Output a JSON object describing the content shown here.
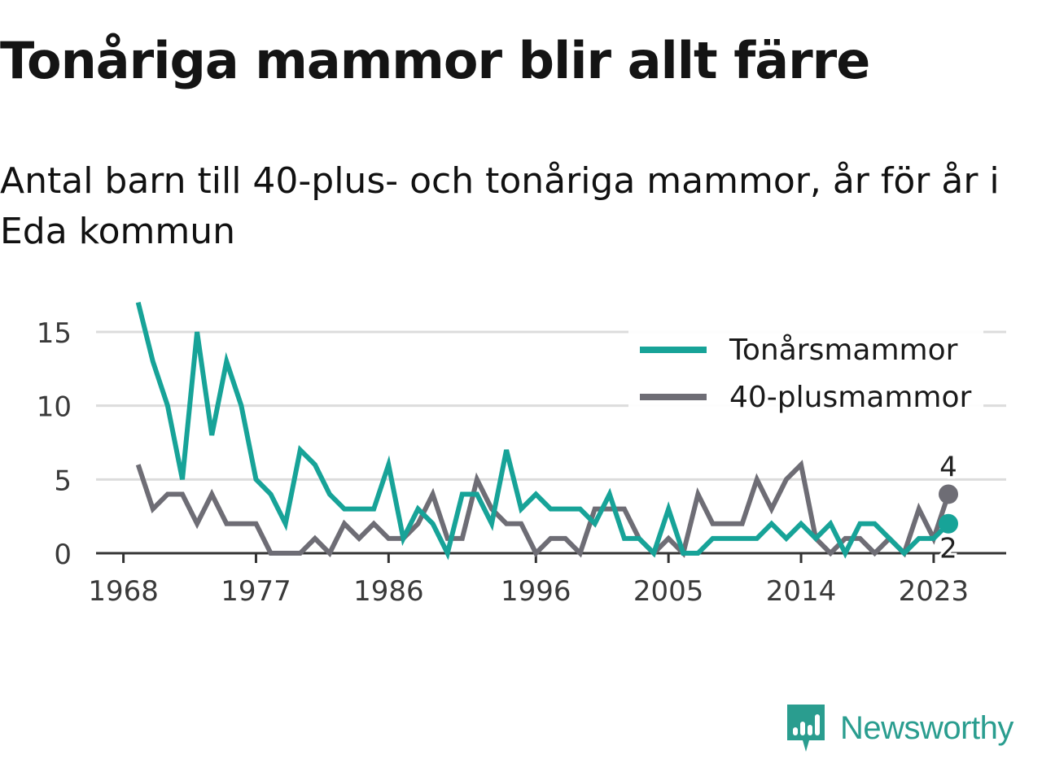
{
  "title": "Tonåriga mammor blir allt färre",
  "subtitle": "Antal barn till 40-plus- och tonåriga mammor, år för år i Eda kommun",
  "brand": {
    "name": "Newsworthy",
    "icon": "newsworthy-logo-icon",
    "color": "#2a9d8f"
  },
  "chart_data": {
    "type": "line",
    "title": "Tonåriga mammor blir allt färre",
    "xlabel": "",
    "ylabel": "",
    "x": [
      1969,
      1970,
      1971,
      1972,
      1973,
      1974,
      1975,
      1976,
      1977,
      1978,
      1979,
      1980,
      1981,
      1982,
      1983,
      1984,
      1985,
      1986,
      1987,
      1988,
      1989,
      1990,
      1991,
      1992,
      1993,
      1994,
      1995,
      1996,
      1997,
      1998,
      1999,
      2000,
      2001,
      2002,
      2003,
      2004,
      2005,
      2006,
      2007,
      2008,
      2009,
      2010,
      2011,
      2012,
      2013,
      2014,
      2015,
      2016,
      2017,
      2018,
      2019,
      2020,
      2021,
      2022,
      2023,
      2024
    ],
    "xticks": [
      1968,
      1977,
      1986,
      1996,
      2005,
      2014,
      2023
    ],
    "yticks": [
      0,
      5,
      10,
      15
    ],
    "ylim": [
      0,
      17.5
    ],
    "xlim": [
      1967,
      2026
    ],
    "grid": true,
    "legend_position": "top-right",
    "series": [
      {
        "name": "Tonårsmammor",
        "color": "#17a398",
        "values": [
          17,
          13,
          10,
          5,
          15,
          8,
          13,
          10,
          5,
          4,
          2,
          7,
          6,
          4,
          3,
          3,
          3,
          6,
          1,
          3,
          2,
          0,
          4,
          4,
          2,
          7,
          3,
          4,
          3,
          3,
          3,
          2,
          4,
          1,
          1,
          0,
          3,
          0,
          0,
          1,
          1,
          1,
          1,
          2,
          1,
          2,
          1,
          2,
          0,
          2,
          2,
          1,
          0,
          1,
          1,
          2
        ],
        "end_label": "2"
      },
      {
        "name": "40-plusmammor",
        "color": "#6e6d75",
        "values": [
          6,
          3,
          4,
          4,
          2,
          4,
          2,
          2,
          2,
          0,
          0,
          0,
          1,
          0,
          2,
          1,
          2,
          1,
          1,
          2,
          4,
          1,
          1,
          5,
          3,
          2,
          2,
          0,
          1,
          1,
          0,
          3,
          3,
          3,
          1,
          0,
          1,
          0,
          4,
          2,
          2,
          2,
          5,
          3,
          5,
          6,
          1,
          0,
          1,
          1,
          0,
          1,
          0,
          3,
          1,
          4
        ],
        "end_label": "4"
      }
    ]
  }
}
